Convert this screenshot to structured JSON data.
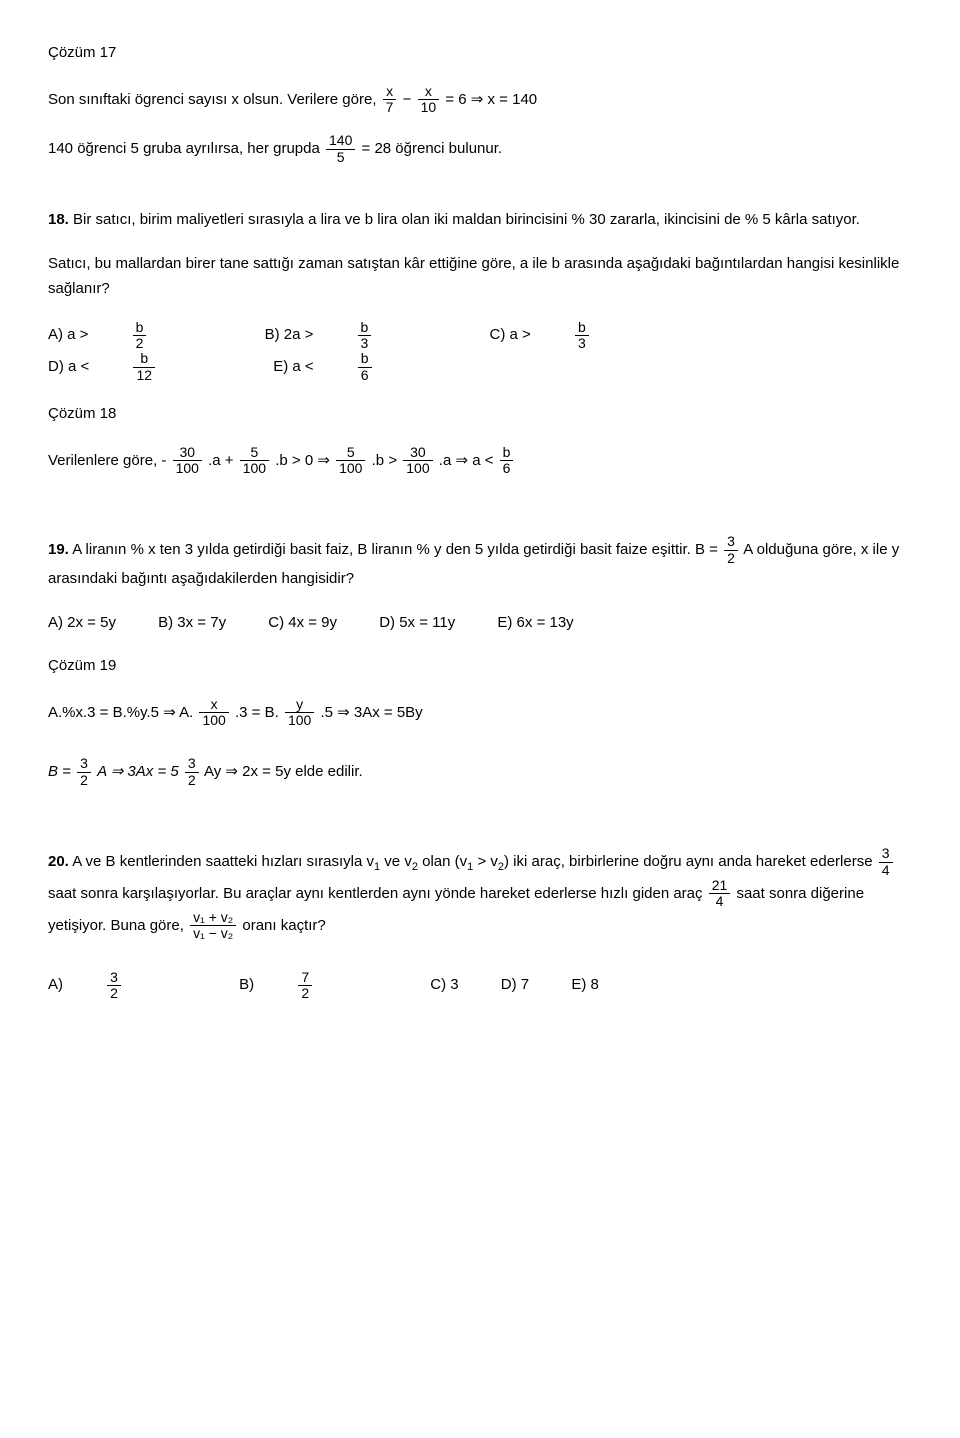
{
  "c17": {
    "title": "Çözüm 17",
    "line1_a": "Son sınıftaki ögrenci sayısı x olsun. Verilere göre,",
    "f1": {
      "n": "x",
      "d": "7"
    },
    "minus": "−",
    "f2": {
      "n": "x",
      "d": "10"
    },
    "line1_b": " = 6   ⇒   x = 140",
    "line2_a": "140 öğrenci 5 gruba ayrılırsa, her grupda ",
    "f3": {
      "n": "140",
      "d": "5"
    },
    "line2_b": " = 28 öğrenci bulunur."
  },
  "q18": {
    "num": "18.",
    "text": " Bir satıcı, birim maliyetleri sırasıyla a lira ve b lira olan iki maldan birincisini % 30 zararla, ikincisini de % 5 kârla satıyor.",
    "text2": "Satıcı, bu mallardan birer tane sattığı zaman satıştan kâr ettiğine göre, a ile b arasında aşağıdaki bağıntılardan hangisi kesinlikle sağlanır?",
    "opts": {
      "A": {
        "lbl": "A) a >",
        "n": "b",
        "d": "2"
      },
      "B": {
        "lbl": "B) 2a >",
        "n": "b",
        "d": "3"
      },
      "C": {
        "lbl": "C) a >",
        "n": "b",
        "d": "3"
      },
      "D": {
        "lbl": "D) a <",
        "n": "b",
        "d": "12"
      },
      "E": {
        "lbl": "E) a <",
        "n": "b",
        "d": "6"
      }
    }
  },
  "c18": {
    "title": "Çözüm 18",
    "line_a": "Verilenlere göre, -",
    "f1": {
      "n": "30",
      "d": "100"
    },
    "t1": ".a + ",
    "f2": {
      "n": "5",
      "d": "100"
    },
    "t2": ".b > 0    ⇒    ",
    "f3": {
      "n": "5",
      "d": "100"
    },
    "t3": ".b > ",
    "f4": {
      "n": "30",
      "d": "100"
    },
    "t4": ".a    ⇒    a < ",
    "f5": {
      "n": "b",
      "d": "6"
    }
  },
  "q19": {
    "num": "19.",
    "text_a": " A liranın % x ten 3 yılda getirdiği basit faiz, B liranın % y den 5 yılda getirdiği basit faize eşittir. B =",
    "f1": {
      "n": "3",
      "d": "2"
    },
    "text_b": "A  olduğuna göre, x ile y arasındaki bağıntı aşağıdakilerden hangisidir?",
    "opts": {
      "A": "A) 2x = 5y",
      "B": "B) 3x = 7y",
      "C": "C) 4x = 9y",
      "D": "D) 5x = 11y",
      "E": "E) 6x = 13y"
    }
  },
  "c19": {
    "title": "Çözüm 19",
    "l1_a": "A.%x.3 = B.%y.5    ⇒    A.",
    "f1": {
      "n": "x",
      "d": "100"
    },
    "l1_b": ".3 = B.",
    "f2": {
      "n": "y",
      "d": "100"
    },
    "l1_c": ".5    ⇒    3Ax = 5By",
    "l2_a": "B =",
    "f3": {
      "n": "3",
      "d": "2"
    },
    "l2_b": "A    ⇒    3Ax = 5",
    "f4": {
      "n": "3",
      "d": "2"
    },
    "l2_c": "Ay    ⇒    2x = 5y elde edilir."
  },
  "q20": {
    "num": "20.",
    "text_a": " A ve B kentlerinden saatteki hızları sırasıyla v",
    "s1": "1",
    "text_b": " ve v",
    "s2": "2",
    "text_c": " olan (v",
    "s3": "1",
    "text_d": " > v",
    "s4": "2",
    "text_e": ") iki araç, birbirlerine doğru aynı anda hareket ederlerse ",
    "f1": {
      "n": "3",
      "d": "4"
    },
    "text_f": " saat sonra karşılaşıyorlar. Bu araçlar aynı kentlerden aynı yönde hareket ederlerse hızlı giden araç ",
    "f2": {
      "n": "21",
      "d": "4"
    },
    "text_g": " saat sonra diğerine yetişiyor. Buna göre, ",
    "f3": {
      "n": "v₁ + v₂",
      "d": "v₁ − v₂"
    },
    "text_h": " oranı kaçtır?",
    "opts": {
      "A": {
        "lbl": "A) ",
        "n": "3",
        "d": "2"
      },
      "B": {
        "lbl": "B) ",
        "n": "7",
        "d": "2"
      },
      "C": "C) 3",
      "D": "D) 7",
      "E": "E) 8"
    }
  }
}
